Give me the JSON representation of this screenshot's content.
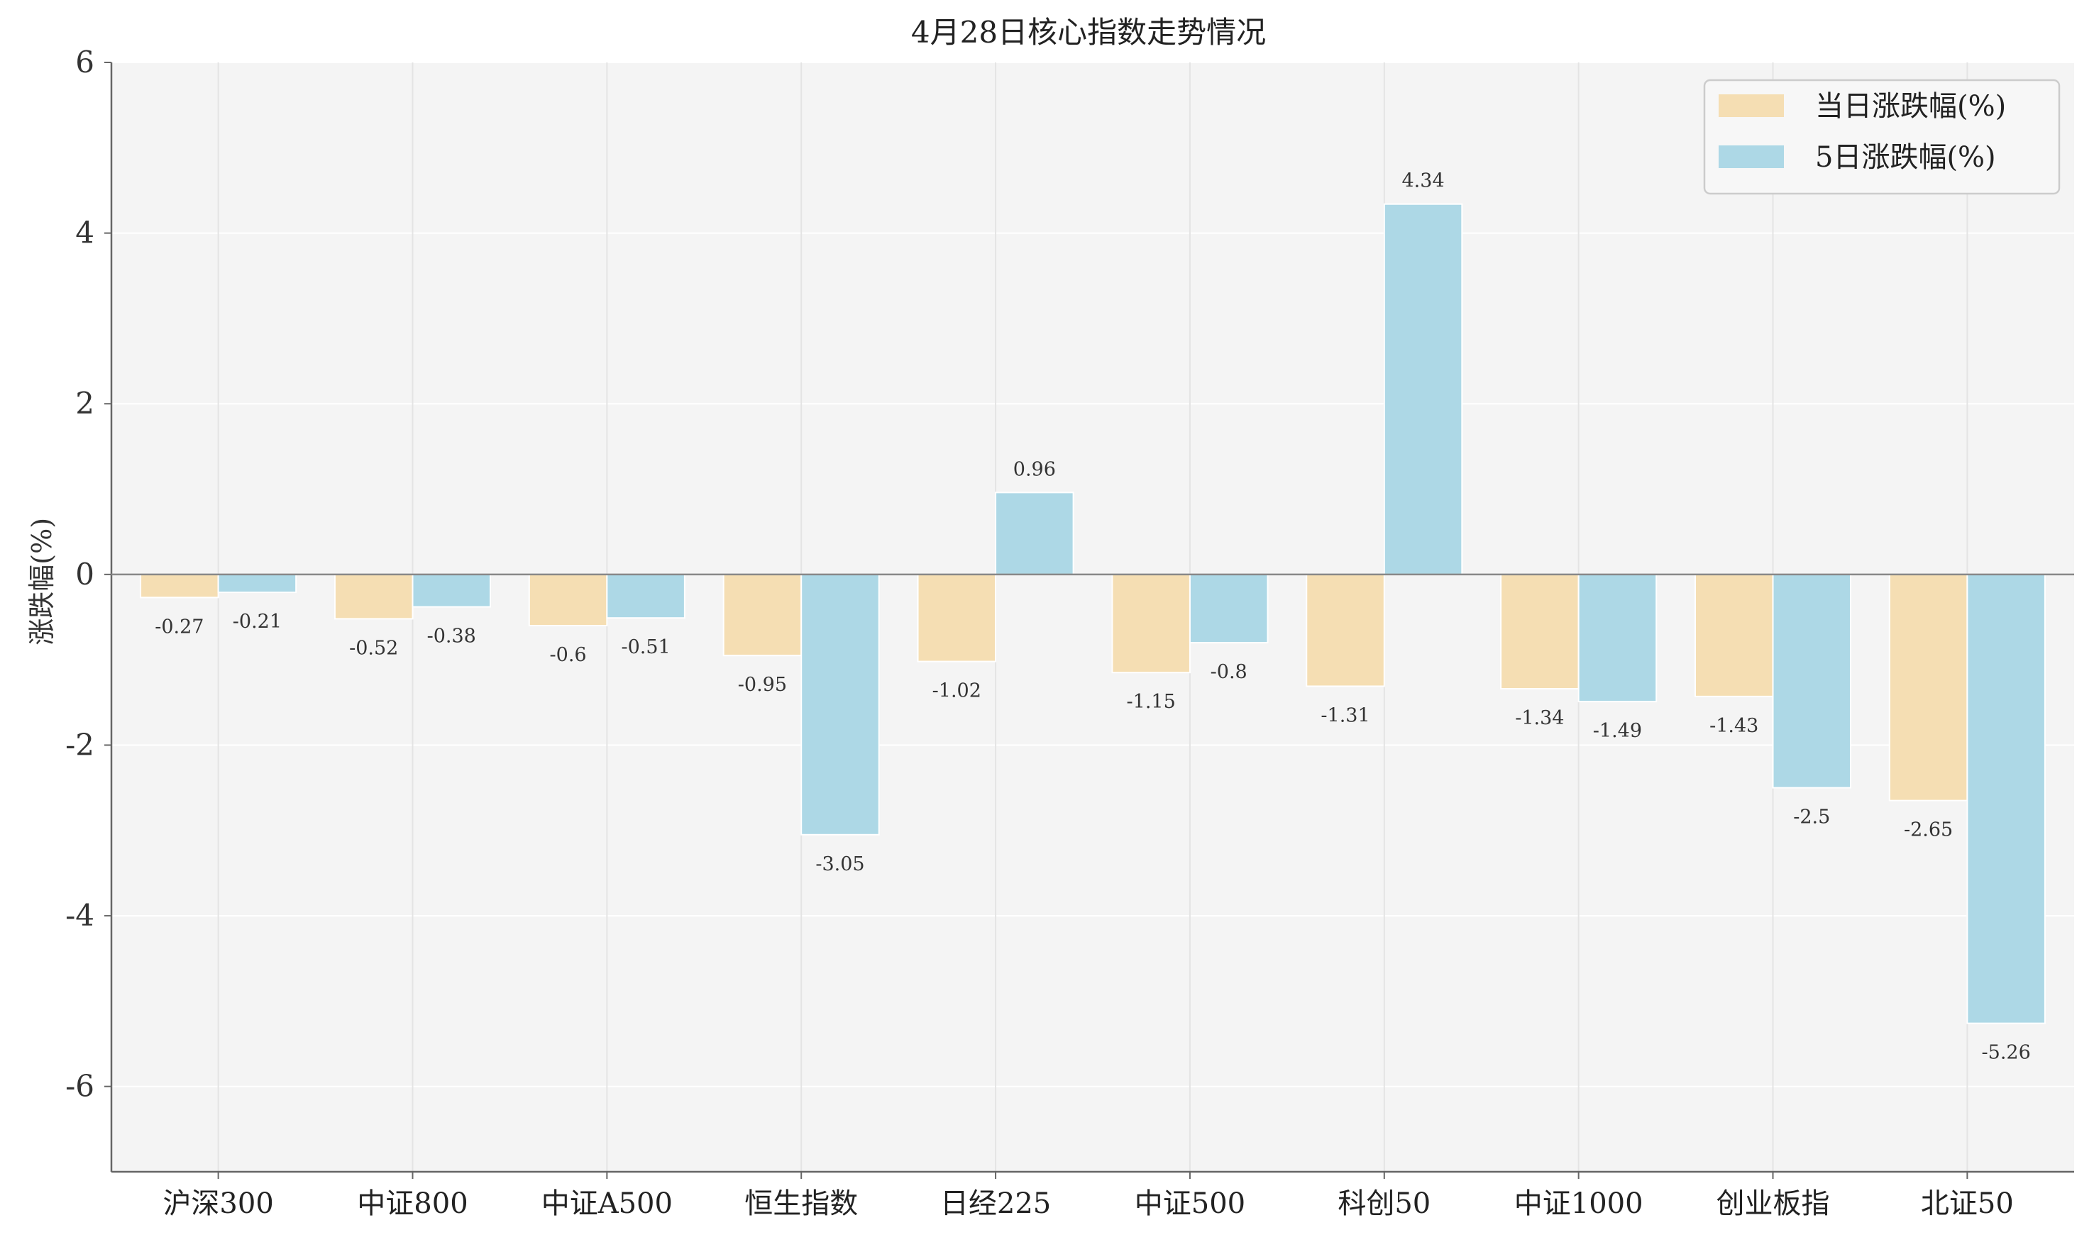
{
  "chart_data": {
    "type": "bar",
    "title": "4月28日核心指数走势情况",
    "xlabel": "",
    "ylabel": "涨跌幅(%)",
    "ylim": [
      -7,
      6
    ],
    "yticks": [
      -6,
      -4,
      -2,
      0,
      2,
      4,
      6
    ],
    "grid": true,
    "legend_position": "top-right",
    "categories": [
      "沪深300",
      "中证800",
      "中证A500",
      "恒生指数",
      "日经225",
      "中证500",
      "科创50",
      "中证1000",
      "创业板指",
      "北证50"
    ],
    "series": [
      {
        "name": "当日涨跌幅(%)",
        "color": "#f5deb3",
        "values": [
          -0.27,
          -0.52,
          -0.6,
          -0.95,
          -1.02,
          -1.15,
          -1.31,
          -1.34,
          -1.43,
          -2.65
        ]
      },
      {
        "name": "5日涨跌幅(%)",
        "color": "#add8e6",
        "values": [
          -0.21,
          -0.38,
          -0.51,
          -3.05,
          0.96,
          -0.8,
          4.34,
          -1.49,
          -2.5,
          -5.26
        ]
      }
    ],
    "colors": {
      "background": "#f4f4f4",
      "grid": "#ffffff",
      "axis": "#666666"
    }
  }
}
